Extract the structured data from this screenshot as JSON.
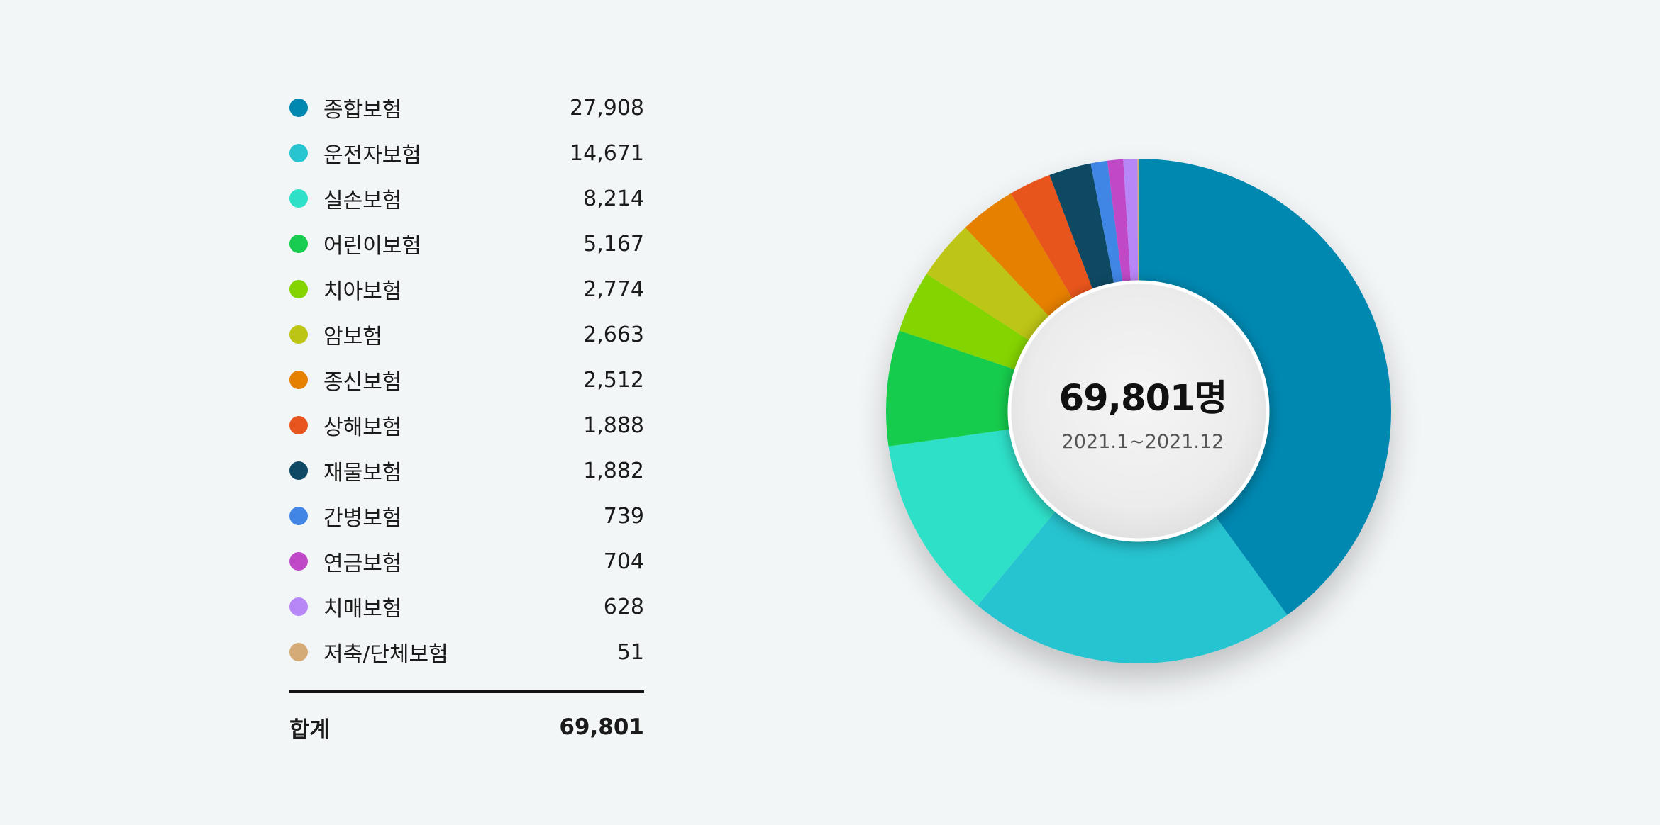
{
  "chart_data": {
    "type": "pie",
    "categories": [
      "종합보험",
      "운전자보험",
      "실손보험",
      "어린이보험",
      "치아보험",
      "암보험",
      "종신보험",
      "상해보험",
      "재물보험",
      "간병보험",
      "연금보험",
      "치매보험",
      "저축/단체보험"
    ],
    "values": [
      27908,
      14671,
      8214,
      5167,
      2774,
      2663,
      2512,
      1888,
      1882,
      739,
      704,
      628,
      51
    ],
    "display_values": [
      "27,908",
      "14,671",
      "8,214",
      "5,167",
      "2,774",
      "2,663",
      "2,512",
      "1,888",
      "1,882",
      "739",
      "704",
      "628",
      "51"
    ],
    "colors": [
      "#0088b1",
      "#28c4d0",
      "#2ee0c8",
      "#17cc4e",
      "#84d400",
      "#bdc514",
      "#e58000",
      "#e8551f",
      "#0d4864",
      "#4186e5",
      "#c049c7",
      "#b887f7",
      "#d4ab76"
    ],
    "total_label": "합계",
    "total_value": "69,801",
    "center_total": "69,801명",
    "center_period": "2021.1~2021.12",
    "legend_placement": "left",
    "donut": true
  }
}
